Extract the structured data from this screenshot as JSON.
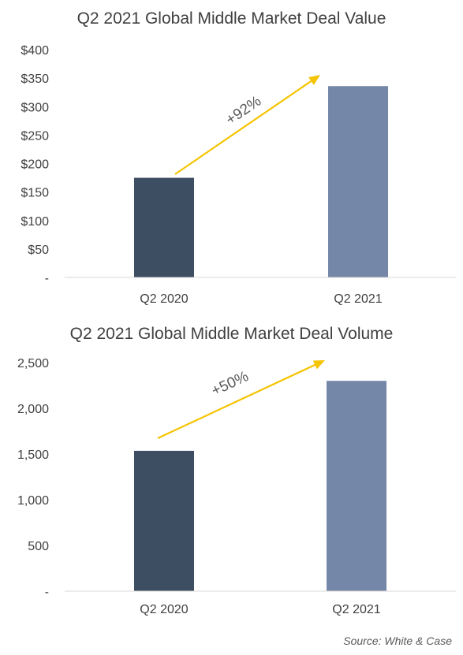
{
  "chart_data": [
    {
      "type": "bar",
      "title": "Q2 2021 Global Middle Market Deal Value",
      "categories": [
        "Q2 2020",
        "Q2 2021"
      ],
      "values": [
        175,
        336
      ],
      "ylim": [
        0,
        400
      ],
      "yticks": [
        0,
        50,
        100,
        150,
        200,
        250,
        300,
        350,
        400
      ],
      "ytick_labels": [
        "-",
        "$50",
        "$100",
        "$150",
        "$200",
        "$250",
        "$300",
        "$350",
        "$400"
      ],
      "bar_colors": [
        "#3d4e63",
        "#7587a8"
      ],
      "annotation": {
        "text": "+92%",
        "color": "#f5c400"
      },
      "grid": false,
      "legend": "none"
    },
    {
      "type": "bar",
      "title": "Q2 2021 Global Middle Market Deal Volume",
      "categories": [
        "Q2 2020",
        "Q2 2021"
      ],
      "values": [
        1535,
        2300
      ],
      "ylim": [
        0,
        2500
      ],
      "yticks": [
        0,
        500,
        1000,
        1500,
        2000,
        2500
      ],
      "ytick_labels": [
        "-",
        "500",
        "1,000",
        "1,500",
        "2,000",
        "2,500"
      ],
      "bar_colors": [
        "#3d4e63",
        "#7587a8"
      ],
      "annotation": {
        "text": "+50%",
        "color": "#f5c400"
      },
      "grid": false,
      "legend": "none"
    }
  ],
  "source": "Source: White & Case"
}
